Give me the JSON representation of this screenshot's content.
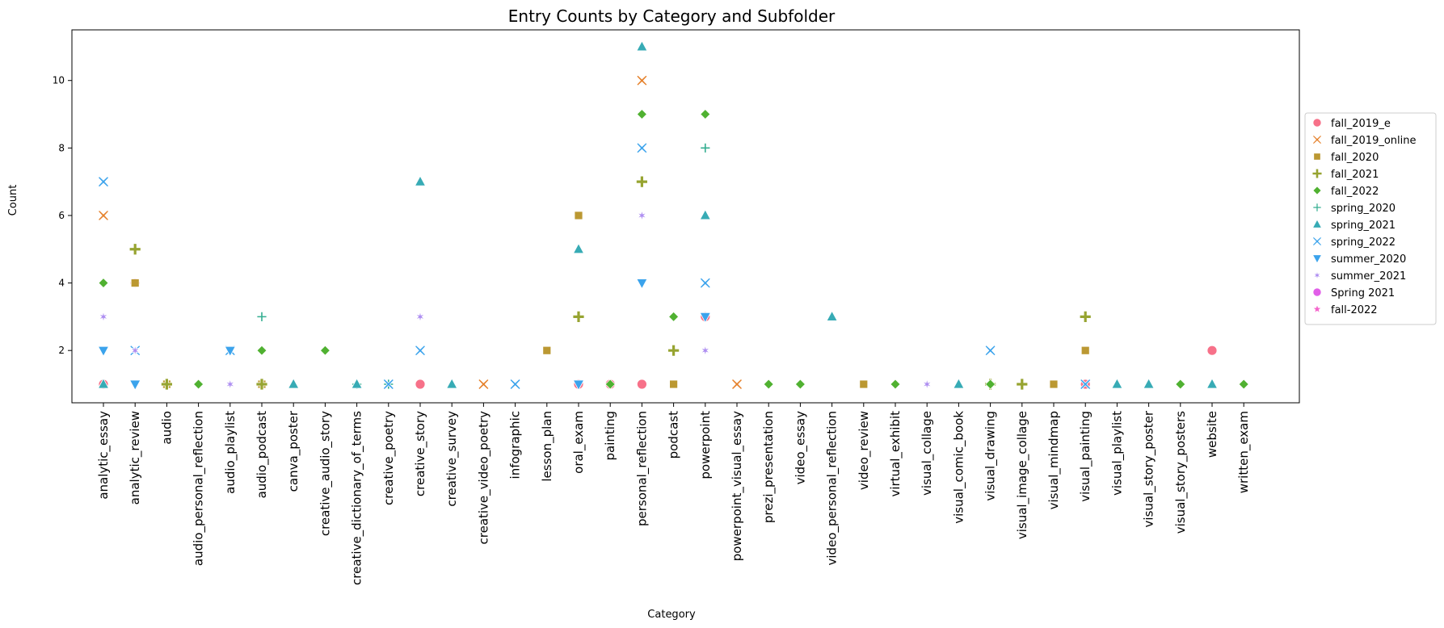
{
  "chart_data": {
    "type": "scatter",
    "title": "Entry Counts by Category and Subfolder",
    "xlabel": "Category",
    "ylabel": "Count",
    "ylim": [
      0.45,
      11.5
    ],
    "yticks": [
      2,
      4,
      6,
      8,
      10
    ],
    "grid": false,
    "legend_placement": "right-outside",
    "categories": [
      "analytic_essay",
      "analytic_review",
      "audio",
      "audio_personal_reflection",
      "audio_playlist",
      "audio_podcast",
      "canva_poster",
      "creative_audio_story",
      "creative_dictionary_of_terms",
      "creative_poetry",
      "creative_story",
      "creative_survey",
      "creative_video_poetry",
      "infographic",
      "lesson_plan",
      "oral_exam",
      "painting",
      "personal_reflection",
      "podcast",
      "powerpoint",
      "powerpoint_visual_essay",
      "prezi_presentation",
      "video_essay",
      "video_personal_reflection",
      "video_review",
      "virtual_exhibit",
      "visual_collage",
      "visual_comic_book",
      "visual_drawing",
      "visual_image_collage",
      "visual_mindmap",
      "visual_painting",
      "visual_playlist",
      "visual_story_poster",
      "visual_story_posters",
      "website",
      "written_exam"
    ],
    "series": [
      {
        "name": "fall_2019_e",
        "color": "#f77189",
        "marker": "circle",
        "points": [
          [
            "analytic_essay",
            1
          ],
          [
            "analytic_review",
            4
          ],
          [
            "audio_podcast",
            1
          ],
          [
            "creative_story",
            1
          ],
          [
            "oral_exam",
            1
          ],
          [
            "painting",
            1
          ],
          [
            "personal_reflection",
            1
          ],
          [
            "powerpoint",
            3
          ],
          [
            "visual_painting",
            1
          ],
          [
            "website",
            2
          ]
        ]
      },
      {
        "name": "fall_2019_online",
        "color": "#e5802a",
        "marker": "x",
        "points": [
          [
            "analytic_essay",
            6
          ],
          [
            "creative_video_poetry",
            1
          ],
          [
            "personal_reflection",
            10
          ],
          [
            "powerpoint_visual_essay",
            1
          ]
        ]
      },
      {
        "name": "fall_2020",
        "color": "#bb9832",
        "marker": "square",
        "points": [
          [
            "analytic_review",
            4
          ],
          [
            "audio",
            1
          ],
          [
            "audio_podcast",
            1
          ],
          [
            "lesson_plan",
            2
          ],
          [
            "oral_exam",
            6
          ],
          [
            "podcast",
            1
          ],
          [
            "video_review",
            1
          ],
          [
            "visual_mindmap",
            1
          ],
          [
            "visual_painting",
            2
          ]
        ]
      },
      {
        "name": "fall_2021",
        "color": "#97a431",
        "marker": "plus",
        "points": [
          [
            "analytic_review",
            5
          ],
          [
            "audio",
            1
          ],
          [
            "audio_podcast",
            1
          ],
          [
            "oral_exam",
            3
          ],
          [
            "personal_reflection",
            7
          ],
          [
            "podcast",
            2
          ],
          [
            "visual_drawing",
            1
          ],
          [
            "visual_image_collage",
            1
          ],
          [
            "visual_painting",
            3
          ]
        ]
      },
      {
        "name": "fall_2022",
        "color": "#50b131",
        "marker": "diamond",
        "points": [
          [
            "analytic_essay",
            4
          ],
          [
            "audio_personal_reflection",
            1
          ],
          [
            "audio_podcast",
            2
          ],
          [
            "creative_audio_story",
            2
          ],
          [
            "painting",
            1
          ],
          [
            "personal_reflection",
            9
          ],
          [
            "podcast",
            3
          ],
          [
            "powerpoint",
            9
          ],
          [
            "prezi_presentation",
            1
          ],
          [
            "video_essay",
            1
          ],
          [
            "virtual_exhibit",
            1
          ],
          [
            "visual_drawing",
            1
          ],
          [
            "visual_story_posters",
            1
          ],
          [
            "written_exam",
            1
          ]
        ]
      },
      {
        "name": "spring_2020",
        "color": "#34ae91",
        "marker": "thin-plus",
        "points": [
          [
            "audio_podcast",
            3
          ],
          [
            "creative_dictionary_of_terms",
            1
          ],
          [
            "creative_poetry",
            1
          ],
          [
            "powerpoint",
            8
          ]
        ]
      },
      {
        "name": "spring_2021",
        "color": "#37abb5",
        "marker": "triangle-up",
        "points": [
          [
            "analytic_essay",
            1
          ],
          [
            "canva_poster",
            1
          ],
          [
            "creative_dictionary_of_terms",
            1
          ],
          [
            "creative_story",
            7
          ],
          [
            "creative_survey",
            1
          ],
          [
            "oral_exam",
            5
          ],
          [
            "personal_reflection",
            11
          ],
          [
            "powerpoint",
            6
          ],
          [
            "video_personal_reflection",
            3
          ],
          [
            "visual_comic_book",
            1
          ],
          [
            "visual_playlist",
            1
          ],
          [
            "visual_story_poster",
            1
          ],
          [
            "website",
            1
          ]
        ]
      },
      {
        "name": "spring_2022",
        "color": "#3ba3ec",
        "marker": "x",
        "points": [
          [
            "analytic_essay",
            7
          ],
          [
            "analytic_review",
            2
          ],
          [
            "audio_playlist",
            2
          ],
          [
            "creative_poetry",
            1
          ],
          [
            "creative_story",
            2
          ],
          [
            "infographic",
            1
          ],
          [
            "personal_reflection",
            8
          ],
          [
            "powerpoint",
            4
          ],
          [
            "visual_drawing",
            2
          ],
          [
            "visual_painting",
            1
          ]
        ]
      },
      {
        "name": "summer_2020",
        "color": "#3ba3ec",
        "marker": "triangle-down",
        "points": [
          [
            "analytic_essay",
            2
          ],
          [
            "analytic_review",
            1
          ],
          [
            "audio_playlist",
            2
          ],
          [
            "oral_exam",
            1
          ],
          [
            "personal_reflection",
            4
          ],
          [
            "powerpoint",
            3
          ]
        ]
      },
      {
        "name": "summer_2021",
        "color": "#ae8ef1",
        "marker": "asterisk",
        "points": [
          [
            "analytic_essay",
            3
          ],
          [
            "analytic_review",
            2
          ],
          [
            "audio_playlist",
            1
          ],
          [
            "creative_story",
            3
          ],
          [
            "personal_reflection",
            6
          ],
          [
            "powerpoint",
            2
          ],
          [
            "visual_collage",
            1
          ]
        ]
      },
      {
        "name": "Spring 2021",
        "color": "#e15ee8",
        "marker": "circle",
        "points": []
      },
      {
        "name": "fall-2022",
        "color": "#f565cc",
        "marker": "star",
        "points": []
      }
    ]
  }
}
